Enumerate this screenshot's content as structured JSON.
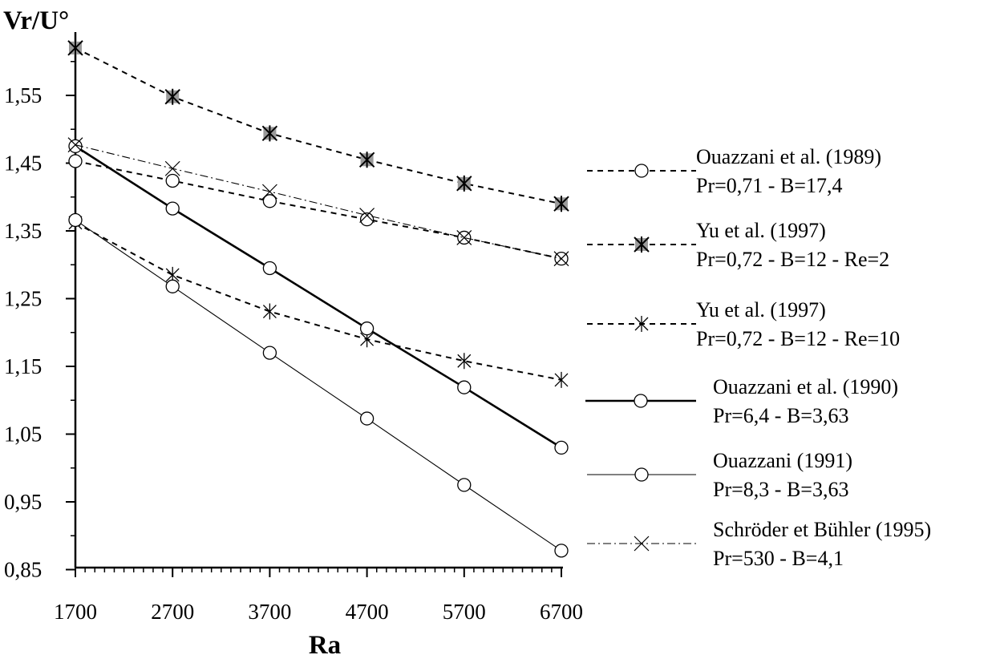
{
  "chart_data": {
    "type": "line",
    "xlabel": "Ra",
    "ylabel": "Vr/U°",
    "xlim": [
      1700,
      6700
    ],
    "ylim": [
      0.85,
      1.62
    ],
    "x_ticks": [
      "1700",
      "2700",
      "3700",
      "4700",
      "5700",
      "6700"
    ],
    "y_ticks": [
      "0,85",
      "0,95",
      "1,05",
      "1,15",
      "1,25",
      "1,35",
      "1,45",
      "1,55"
    ],
    "x": [
      1700,
      2700,
      3700,
      4700,
      5700,
      6700
    ],
    "series": [
      {
        "name": "Ouazzani et al. (1989)",
        "params": "Pr=0,71 - B=17,4",
        "line": "dashed",
        "marker": "circle",
        "weight": "medium",
        "values": [
          1.453,
          1.424,
          1.394,
          1.367,
          1.34,
          1.309
        ]
      },
      {
        "name": "Yu et al. (1997)",
        "params": "Pr=0,72 - B=12 - Re=2",
        "line": "dashed",
        "marker": "filled-star",
        "weight": "medium",
        "values": [
          1.62,
          1.548,
          1.494,
          1.455,
          1.42,
          1.39
        ]
      },
      {
        "name": "Yu et al. (1997)",
        "params": "Pr=0,72 - B=12 - Re=10",
        "line": "dashed",
        "marker": "asterisk",
        "weight": "medium",
        "values": [
          1.362,
          1.285,
          1.231,
          1.19,
          1.158,
          1.13
        ]
      },
      {
        "name": "Ouazzani et al. (1990)",
        "params": "Pr=6,4 - B=3,63",
        "line": "solid",
        "marker": "circle",
        "weight": "thick",
        "values": [
          1.475,
          1.383,
          1.295,
          1.206,
          1.119,
          1.03
        ]
      },
      {
        "name": "Ouazzani  (1991)",
        "params": "Pr=8,3 - B=3,63",
        "line": "solid",
        "marker": "circle",
        "weight": "thin",
        "values": [
          1.366,
          1.268,
          1.17,
          1.073,
          0.975,
          0.878
        ]
      },
      {
        "name": "Schröder et Bühler (1995)",
        "params": "Pr=530 - B=4,1",
        "line": "dashdot",
        "marker": "cross",
        "weight": "thin",
        "values": [
          1.477,
          1.442,
          1.408,
          1.373,
          1.34,
          1.309
        ]
      }
    ],
    "legend_position": "right",
    "grid": false
  }
}
